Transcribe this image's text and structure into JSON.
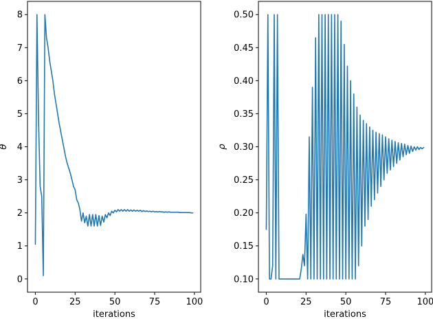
{
  "colors": {
    "series": "#1f77b4"
  },
  "chart_data": [
    {
      "type": "line",
      "xlabel": "iterations",
      "ylabel": "θ",
      "xlim": [
        -4.95,
        103.95
      ],
      "ylim": [
        -0.4,
        8.4
      ],
      "xticks": [
        0,
        25,
        50,
        75,
        100
      ],
      "yticks": [
        0,
        1,
        2,
        3,
        4,
        5,
        6,
        7,
        8
      ],
      "ytick_decimals": 0,
      "series": [
        {
          "x": [
            0,
            1,
            2,
            3,
            4,
            5,
            6,
            7,
            8,
            9,
            10,
            11,
            12,
            13,
            14,
            15,
            16,
            17,
            18,
            19,
            20,
            21,
            22,
            23,
            24,
            25,
            26,
            27,
            28,
            29,
            30,
            31,
            32,
            33,
            34,
            35,
            36,
            37,
            38,
            39,
            40,
            41,
            42,
            43,
            44,
            45,
            46,
            47,
            48,
            49,
            50,
            51,
            52,
            53,
            54,
            55,
            56,
            57,
            58,
            59,
            60,
            61,
            62,
            63,
            64,
            65,
            66,
            67,
            68,
            69,
            70,
            71,
            72,
            73,
            74,
            75,
            76,
            77,
            78,
            79,
            80,
            81,
            82,
            83,
            84,
            85,
            86,
            87,
            88,
            89,
            90,
            91,
            92,
            93,
            94,
            95,
            96,
            97,
            98,
            99
          ],
          "y": [
            1.05,
            8.0,
            4.8,
            2.8,
            2.5,
            0.1,
            8.0,
            7.3,
            7.0,
            6.6,
            6.3,
            6.0,
            5.6,
            5.3,
            5.0,
            4.7,
            4.45,
            4.2,
            3.95,
            3.7,
            3.5,
            3.35,
            3.2,
            3.0,
            2.8,
            2.7,
            2.4,
            2.3,
            2.1,
            1.75,
            2.0,
            1.7,
            1.9,
            1.6,
            1.95,
            1.6,
            1.95,
            1.6,
            1.95,
            1.6,
            1.92,
            1.62,
            1.9,
            1.72,
            1.95,
            1.85,
            2.0,
            1.92,
            2.05,
            2.0,
            2.08,
            2.03,
            2.1,
            2.05,
            2.1,
            2.05,
            2.1,
            2.05,
            2.1,
            2.05,
            2.09,
            2.05,
            2.09,
            2.05,
            2.08,
            2.05,
            2.08,
            2.04,
            2.07,
            2.04,
            2.06,
            2.04,
            2.05,
            2.03,
            2.05,
            2.03,
            2.04,
            2.03,
            2.04,
            2.03,
            2.03,
            2.02,
            2.03,
            2.02,
            2.03,
            2.02,
            2.02,
            2.02,
            2.02,
            2.02,
            2.02,
            2.01,
            2.01,
            2.01,
            2.01,
            2.01,
            2.01,
            2.01,
            2.0,
            2.0
          ]
        }
      ]
    },
    {
      "type": "line",
      "xlabel": "iterations",
      "ylabel": "ρ",
      "xlim": [
        -4.95,
        103.95
      ],
      "ylim": [
        0.08,
        0.52
      ],
      "xticks": [
        0,
        25,
        50,
        75,
        100
      ],
      "yticks": [
        0.1,
        0.15,
        0.2,
        0.25,
        0.3,
        0.35,
        0.4,
        0.45,
        0.5
      ],
      "ytick_decimals": 2,
      "series": [
        {
          "x": [
            0,
            1,
            2,
            3,
            4,
            5,
            6,
            7,
            8,
            9,
            10,
            11,
            12,
            13,
            14,
            15,
            16,
            17,
            18,
            19,
            20,
            21,
            22,
            23,
            24,
            25,
            26,
            27,
            28,
            29,
            30,
            31,
            32,
            33,
            34,
            35,
            36,
            37,
            38,
            39,
            40,
            41,
            42,
            43,
            44,
            45,
            46,
            47,
            48,
            49,
            50,
            51,
            52,
            53,
            54,
            55,
            56,
            57,
            58,
            59,
            60,
            61,
            62,
            63,
            64,
            65,
            66,
            67,
            68,
            69,
            70,
            71,
            72,
            73,
            74,
            75,
            76,
            77,
            78,
            79,
            80,
            81,
            82,
            83,
            84,
            85,
            86,
            87,
            88,
            89,
            90,
            91,
            92,
            93,
            94,
            95,
            96,
            97,
            98,
            99
          ],
          "y": [
            0.175,
            0.5,
            0.1,
            0.1,
            0.12,
            0.5,
            0.1,
            0.5,
            0.1,
            0.1,
            0.1,
            0.1,
            0.1,
            0.1,
            0.1,
            0.1,
            0.1,
            0.1,
            0.1,
            0.1,
            0.1,
            0.1,
            0.115,
            0.137,
            0.12,
            0.198,
            0.1,
            0.315,
            0.1,
            0.39,
            0.1,
            0.465,
            0.1,
            0.5,
            0.1,
            0.5,
            0.1,
            0.5,
            0.1,
            0.5,
            0.1,
            0.5,
            0.1,
            0.5,
            0.1,
            0.5,
            0.1,
            0.49,
            0.1,
            0.455,
            0.1,
            0.422,
            0.1,
            0.4,
            0.1,
            0.38,
            0.1,
            0.36,
            0.12,
            0.348,
            0.15,
            0.34,
            0.18,
            0.335,
            0.19,
            0.33,
            0.21,
            0.325,
            0.22,
            0.322,
            0.23,
            0.32,
            0.24,
            0.318,
            0.25,
            0.315,
            0.26,
            0.312,
            0.265,
            0.31,
            0.27,
            0.308,
            0.275,
            0.306,
            0.28,
            0.305,
            0.285,
            0.304,
            0.288,
            0.302,
            0.29,
            0.301,
            0.293,
            0.3,
            0.295,
            0.3,
            0.296,
            0.299,
            0.297,
            0.299
          ]
        }
      ]
    }
  ]
}
